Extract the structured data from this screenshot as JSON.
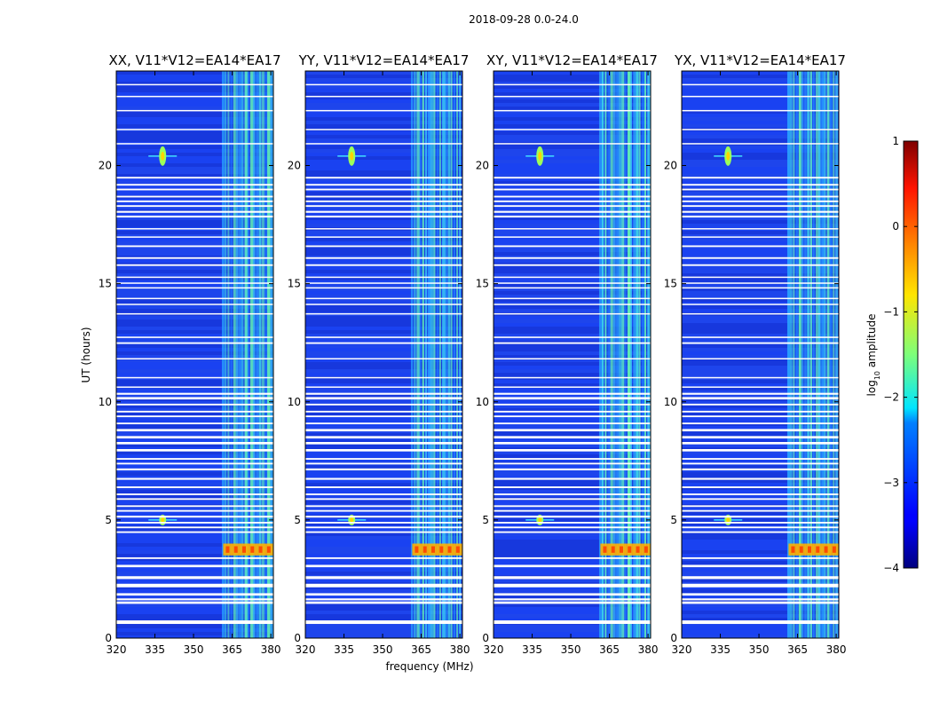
{
  "chart_data": {
    "type": "heatmap",
    "suptitle": "2018-09-28 0.0-24.0",
    "xlabel": "frequency (MHz)",
    "ylabel": "UT (hours)",
    "xlim": [
      320,
      381
    ],
    "ylim": [
      0,
      24
    ],
    "xticks": [
      320,
      335,
      350,
      365,
      380
    ],
    "yticks": [
      0,
      5,
      10,
      15,
      20
    ],
    "panels": [
      {
        "title": "XX, V11*V12=EA14*EA17"
      },
      {
        "title": "YY, V11*V12=EA14*EA17"
      },
      {
        "title": "XY, V11*V12=EA14*EA17"
      },
      {
        "title": "YX, V11*V12=EA14*EA17"
      }
    ],
    "colorbar": {
      "label_main": "log",
      "label_sub": "10",
      "label_rest": " amplitude",
      "range": [
        -4,
        1
      ],
      "ticks": [
        1,
        0,
        -1,
        -2,
        -3,
        -4
      ],
      "tick_labels": [
        "1",
        "0",
        "−1",
        "−2",
        "−3",
        "−4"
      ]
    },
    "features": {
      "rfi_band_mhz": [
        361,
        380
      ],
      "point_source": {
        "freq_mhz": 338,
        "ut_hours": [
          20.4,
          5.0
        ]
      },
      "bright_burst_ut": [
        3.5,
        4.0
      ],
      "flagged_intervals_ut": [
        [
          0.6,
          0.75
        ],
        [
          1.45,
          1.55
        ],
        [
          1.6,
          1.68
        ],
        [
          1.8,
          1.9
        ],
        [
          2.15,
          2.3
        ],
        [
          2.5,
          2.62
        ],
        [
          3.0,
          3.1
        ],
        [
          3.35,
          3.42
        ],
        [
          4.45,
          4.52
        ],
        [
          4.65,
          4.72
        ],
        [
          4.85,
          4.92
        ],
        [
          5.1,
          5.18
        ],
        [
          5.35,
          5.42
        ],
        [
          5.55,
          5.62
        ],
        [
          5.85,
          5.92
        ],
        [
          6.05,
          6.12
        ],
        [
          6.35,
          6.42
        ],
        [
          6.7,
          6.78
        ],
        [
          7.1,
          7.18
        ],
        [
          7.35,
          7.42
        ],
        [
          7.55,
          7.62
        ],
        [
          7.9,
          8.0
        ],
        [
          8.2,
          8.3
        ],
        [
          8.45,
          8.55
        ],
        [
          8.75,
          8.85
        ],
        [
          9.05,
          9.12
        ],
        [
          9.35,
          9.42
        ],
        [
          9.55,
          9.62
        ],
        [
          9.85,
          9.92
        ],
        [
          10.1,
          10.2
        ],
        [
          10.3,
          10.38
        ],
        [
          10.6,
          10.65
        ],
        [
          11.0,
          11.05
        ],
        [
          11.8,
          11.85
        ],
        [
          12.45,
          12.52
        ],
        [
          12.7,
          12.76
        ],
        [
          13.7,
          13.75
        ],
        [
          14.1,
          14.15
        ],
        [
          14.35,
          14.4
        ],
        [
          14.8,
          14.85
        ],
        [
          15.0,
          15.05
        ],
        [
          15.25,
          15.3
        ],
        [
          15.75,
          15.82
        ],
        [
          16.05,
          16.12
        ],
        [
          16.55,
          16.62
        ],
        [
          16.95,
          17.0
        ],
        [
          17.3,
          17.35
        ],
        [
          17.8,
          17.88
        ],
        [
          18.0,
          18.08
        ],
        [
          18.25,
          18.32
        ],
        [
          18.45,
          18.52
        ],
        [
          18.65,
          18.72
        ],
        [
          18.95,
          19.02
        ],
        [
          19.15,
          19.22
        ],
        [
          19.45,
          19.52
        ],
        [
          20.9,
          20.95
        ],
        [
          21.5,
          21.55
        ],
        [
          22.3,
          22.35
        ],
        [
          22.9,
          22.95
        ],
        [
          23.4,
          23.45
        ]
      ]
    }
  }
}
